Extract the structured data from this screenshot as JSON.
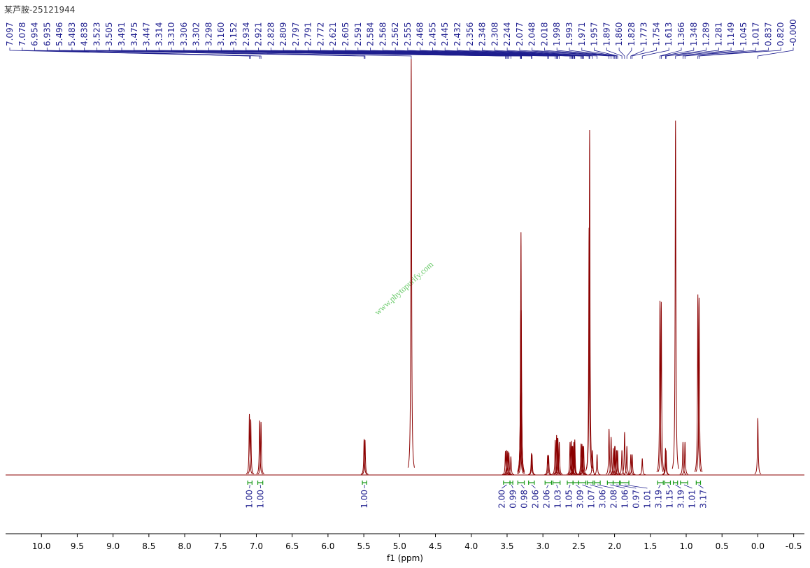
{
  "chart_data": {
    "type": "spectrum",
    "title": "某芦胺-25121944",
    "watermark": "www.phytopurify.com",
    "x_label": "f1 (ppm)",
    "xlim": [
      10.5,
      -0.65
    ],
    "xticks": [
      {
        "value": 10,
        "label": "10.0"
      },
      9.5,
      {
        "value": 9,
        "label": "9.0"
      },
      8.5,
      {
        "value": 8,
        "label": "8.0"
      },
      7.5,
      {
        "value": 7,
        "label": "7.0"
      },
      6.5,
      {
        "value": 6,
        "label": "6.0"
      },
      5.5,
      {
        "value": 5,
        "label": "5.0"
      },
      4.5,
      {
        "value": 4,
        "label": "4.0"
      },
      3.5,
      {
        "value": 3,
        "label": "3.0"
      },
      2.5,
      {
        "value": 2,
        "label": "2.0"
      },
      1.5,
      {
        "value": 1,
        "label": "1.0"
      },
      0.5,
      {
        "value": 0,
        "label": "0.0"
      },
      -0.5
    ],
    "ylim": [
      0,
      100
    ],
    "color": "#8b0000",
    "shift_labels": [
      {
        "value": 7.097,
        "label": "7.097"
      },
      {
        "value": 7.078,
        "label": "7.078"
      },
      {
        "value": 6.954,
        "label": "6.954"
      },
      {
        "value": 6.935,
        "label": "6.935"
      },
      {
        "value": 5.496,
        "label": "5.496"
      },
      {
        "value": 5.483,
        "label": "5.483"
      },
      {
        "value": 4.838,
        "label": "4.838"
      },
      {
        "value": 3.523,
        "label": "3.523"
      },
      {
        "value": 3.505,
        "label": "3.505"
      },
      {
        "value": 3.491,
        "label": "3.491"
      },
      {
        "value": 3.475,
        "label": "3.475"
      },
      {
        "value": 3.447,
        "label": "3.447"
      },
      {
        "value": 3.314,
        "label": "3.314"
      },
      {
        "value": 3.31,
        "label": "3.310"
      },
      {
        "value": 3.306,
        "label": "3.306"
      },
      {
        "value": 3.302,
        "label": "3.302"
      },
      {
        "value": 3.298,
        "label": "3.298"
      },
      {
        "value": 3.16,
        "label": "3.160"
      },
      {
        "value": 3.152,
        "label": "3.152"
      },
      {
        "value": 2.934,
        "label": "2.934"
      },
      {
        "value": 2.921,
        "label": "2.921"
      },
      {
        "value": 2.828,
        "label": "2.828"
      },
      {
        "value": 2.809,
        "label": "2.809"
      },
      {
        "value": 2.797,
        "label": "2.797"
      },
      {
        "value": 2.791,
        "label": "2.791"
      },
      {
        "value": 2.772,
        "label": "2.772"
      },
      {
        "value": 2.621,
        "label": "2.621"
      },
      {
        "value": 2.605,
        "label": "2.605"
      },
      {
        "value": 2.591,
        "label": "2.591"
      },
      {
        "value": 2.584,
        "label": "2.584"
      },
      {
        "value": 2.568,
        "label": "2.568"
      },
      {
        "value": 2.562,
        "label": "2.562"
      },
      {
        "value": 2.555,
        "label": "2.555"
      },
      {
        "value": 2.468,
        "label": "2.468"
      },
      {
        "value": 2.455,
        "label": "2.455"
      },
      {
        "value": 2.445,
        "label": "2.445"
      },
      {
        "value": 2.432,
        "label": "2.432"
      },
      {
        "value": 2.356,
        "label": "2.356"
      },
      {
        "value": 2.348,
        "label": "2.348"
      },
      {
        "value": 2.308,
        "label": "2.308"
      },
      {
        "value": 2.244,
        "label": "2.244"
      },
      {
        "value": 2.077,
        "label": "2.077"
      },
      {
        "value": 2.048,
        "label": "2.048"
      },
      {
        "value": 2.018,
        "label": "2.018"
      },
      {
        "value": 1.998,
        "label": "1.998"
      },
      {
        "value": 1.993,
        "label": "1.993"
      },
      {
        "value": 1.971,
        "label": "1.971"
      },
      {
        "value": 1.957,
        "label": "1.957"
      },
      {
        "value": 1.897,
        "label": "1.897"
      },
      {
        "value": 1.86,
        "label": "1.860"
      },
      {
        "value": 1.828,
        "label": "1.828"
      },
      {
        "value": 1.773,
        "label": "1.773"
      },
      {
        "value": 1.754,
        "label": "1.754"
      },
      {
        "value": 1.613,
        "label": "1.613"
      },
      {
        "value": 1.366,
        "label": "1.366"
      },
      {
        "value": 1.348,
        "label": "1.348"
      },
      {
        "value": 1.289,
        "label": "1.289"
      },
      {
        "value": 1.281,
        "label": "1.281"
      },
      {
        "value": 1.149,
        "label": "1.149"
      },
      {
        "value": 1.045,
        "label": "1.045"
      },
      {
        "value": 1.017,
        "label": "1.017"
      },
      {
        "value": 0.837,
        "label": "0.837"
      },
      {
        "value": 0.82,
        "label": "0.820"
      },
      {
        "value": 0,
        "label": "-0.000"
      }
    ],
    "values": [
      14.8,
      13.5,
      13.2,
      12.9,
      8.7,
      8.5,
      101,
      5.8,
      6,
      5.8,
      5.5,
      4.5,
      20,
      40,
      58.9,
      40,
      20,
      5.3,
      5,
      4.8,
      4.8,
      8.5,
      9.7,
      9,
      9,
      8,
      8,
      8.3,
      7,
      7,
      8,
      7.5,
      8.6,
      7.6,
      7.5,
      7,
      7,
      60,
      83.7,
      6,
      5,
      11.2,
      9.2,
      6.5,
      7,
      7,
      6,
      6,
      6,
      10.4,
      7,
      5,
      5,
      4,
      42.3,
      42,
      6.5,
      6,
      86,
      8,
      8,
      43.8,
      43,
      13.8
    ],
    "integrals": [
      {
        "value": 1,
        "label": "1.00",
        "x": [
          7.12,
          7.06
        ]
      },
      {
        "value": 1,
        "label": "1.00",
        "x": [
          6.98,
          6.91
        ]
      },
      {
        "value": 1,
        "label": "1.00",
        "x": [
          5.52,
          5.46
        ]
      },
      {
        "value": 2,
        "label": "2.00",
        "x": [
          3.55,
          3.46
        ]
      },
      {
        "value": 0.99,
        "label": "0.99",
        "x": [
          3.46,
          3.42
        ]
      },
      {
        "value": 0.98,
        "label": "0.98",
        "x": [
          3.35,
          3.26
        ]
      },
      {
        "value": 2.06,
        "label": "2.06",
        "x": [
          3.2,
          3.12
        ]
      },
      {
        "value": 2.06,
        "label": "2.06",
        "x": [
          2.97,
          2.88
        ]
      },
      {
        "value": 1.03,
        "label": "1.03",
        "x": [
          2.86,
          2.76
        ]
      },
      {
        "value": 1.05,
        "label": "1.05",
        "x": [
          2.66,
          2.58
        ]
      },
      {
        "value": 3.09,
        "label": "3.09",
        "x": [
          2.58,
          2.5
        ]
      },
      {
        "value": 1.07,
        "label": "1.07",
        "x": [
          2.5,
          2.4
        ]
      },
      {
        "value": 3.06,
        "label": "3.06",
        "x": [
          2.38,
          2.3
        ]
      },
      {
        "value": 2.08,
        "label": "2.08",
        "x": [
          2.28,
          2.2
        ]
      },
      {
        "value": 1.06,
        "label": "1.06",
        "x": [
          2.1,
          2.02
        ]
      },
      {
        "value": 0.97,
        "label": "0.97",
        "x": [
          2.02,
          1.93
        ]
      },
      {
        "value": 1.01,
        "label": "1.01",
        "x": [
          1.92,
          1.8
        ]
      },
      {
        "value": 3.19,
        "label": "3.19",
        "x": [
          1.4,
          1.32
        ]
      },
      {
        "value": 1.15,
        "label": "1.15",
        "x": [
          1.3,
          1.22
        ]
      },
      {
        "value": 3.19,
        "label": "3.19",
        "x": [
          1.18,
          1.12
        ]
      },
      {
        "value": 1.01,
        "label": "1.01",
        "x": [
          1.08,
          0.98
        ]
      },
      {
        "value": 3.17,
        "label": "3.17",
        "x": [
          0.86,
          0.8
        ]
      }
    ]
  }
}
